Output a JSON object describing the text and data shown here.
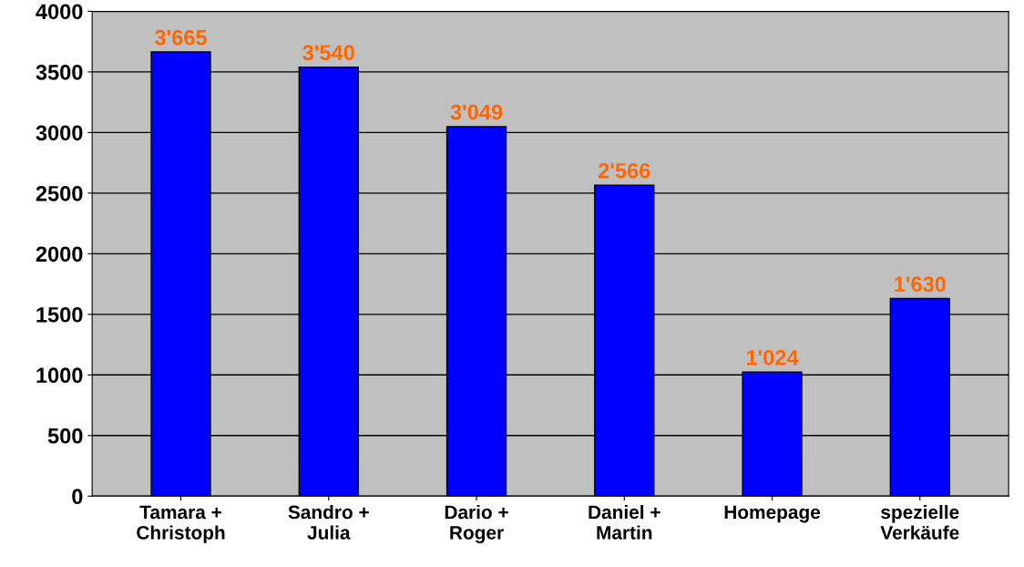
{
  "chart_data": {
    "type": "bar",
    "categories": [
      "Tamara +\nChristoph",
      "Sandro +\nJulia",
      "Dario +\nRoger",
      "Daniel +\nMartin",
      "Homepage",
      "spezielle\nVerkäufe"
    ],
    "values": [
      3665,
      3540,
      3049,
      2566,
      1024,
      1630
    ],
    "value_labels": [
      "3'665",
      "3'540",
      "3'049",
      "2'566",
      "1'024",
      "1'630"
    ],
    "color": "#0000ff",
    "ylim": [
      0,
      4000
    ],
    "yticks": [
      0,
      500,
      1000,
      1500,
      2000,
      2500,
      3000,
      3500,
      4000
    ],
    "grid": "y"
  }
}
